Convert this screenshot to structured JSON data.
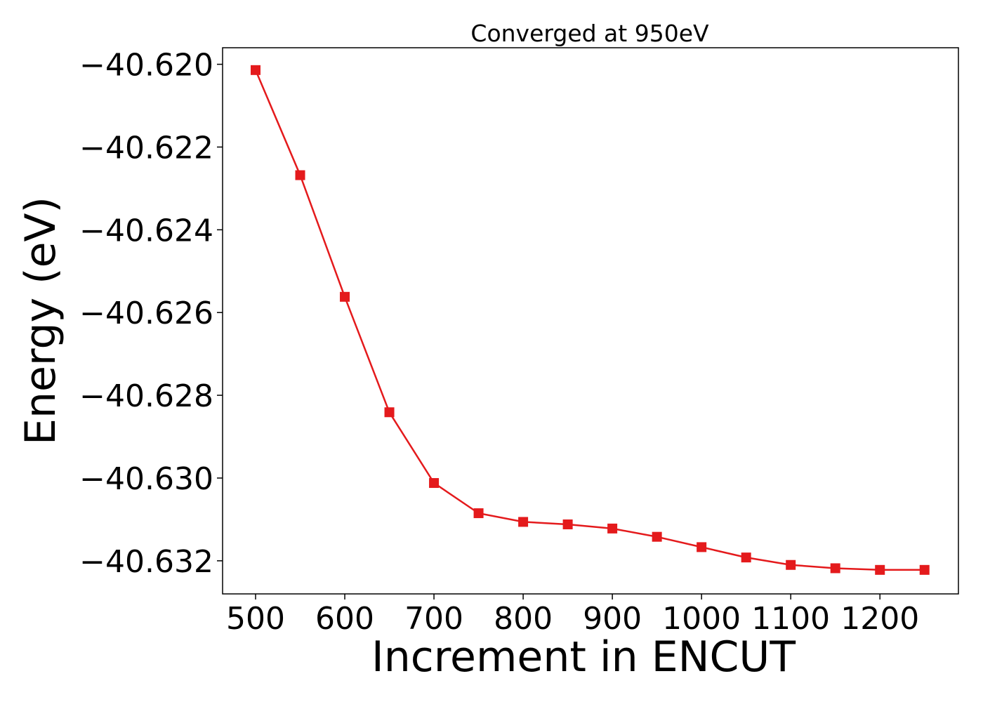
{
  "chart_data": {
    "type": "line",
    "title": "Converged at 950eV",
    "xlabel": "Increment in ENCUT",
    "ylabel": "Energy (eV)",
    "xlim": [
      463,
      1288
    ],
    "ylim": [
      -40.6328,
      -40.6196
    ],
    "x_ticks": [
      500,
      600,
      700,
      800,
      900,
      1000,
      1100,
      1200
    ],
    "x_tick_labels": [
      "500",
      "600",
      "700",
      "800",
      "900",
      "1000",
      "1100",
      "1200"
    ],
    "y_ticks": [
      -40.62,
      -40.622,
      -40.624,
      -40.626,
      -40.628,
      -40.63,
      -40.632
    ],
    "y_tick_labels": [
      "−40.620",
      "−40.622",
      "−40.624",
      "−40.626",
      "−40.628",
      "−40.630",
      "−40.632"
    ],
    "grid": false,
    "legend": "none",
    "series": [
      {
        "color": "#e41a1c",
        "marker": "square",
        "x": [
          500,
          550,
          600,
          650,
          700,
          750,
          800,
          850,
          900,
          950,
          1000,
          1050,
          1100,
          1150,
          1200,
          1250
        ],
        "y": [
          -40.62014,
          -40.62268,
          -40.62562,
          -40.62841,
          -40.63012,
          -40.63085,
          -40.63106,
          -40.63112,
          -40.63122,
          -40.63142,
          -40.63167,
          -40.63192,
          -40.6321,
          -40.63218,
          -40.63222,
          -40.63222
        ]
      }
    ]
  }
}
